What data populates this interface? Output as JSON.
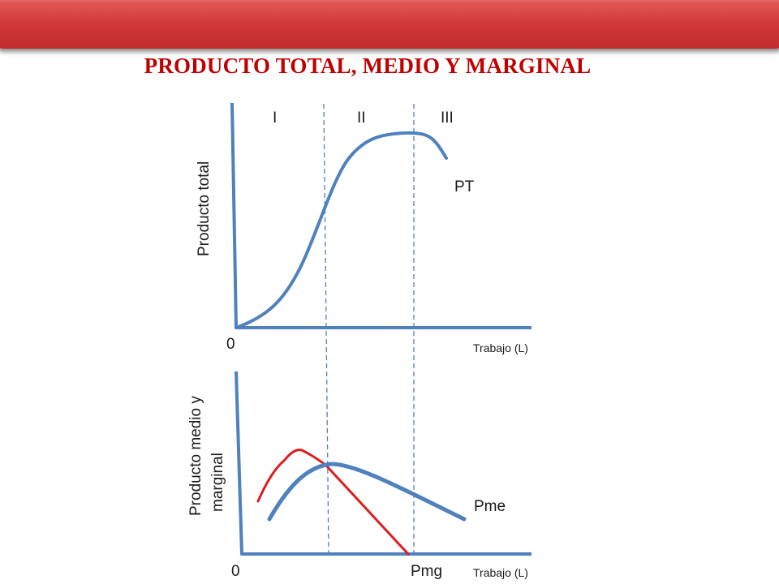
{
  "title": "PRODUCTO TOTAL, MEDIO Y MARGINAL",
  "top_graph": {
    "ylabel": "Producto total",
    "xlabel": "Trabajo (L)",
    "origin": "0",
    "stages": [
      "I",
      "II",
      "III"
    ],
    "curve_label": "PT",
    "curve_color": "#4f81bd"
  },
  "bottom_graph": {
    "ylabel_line1": "Producto medio y",
    "ylabel_line2": "marginal",
    "xlabel": "Trabajo (L)",
    "origin": "0",
    "pme_label": "Pme",
    "pmg_label": "Pmg",
    "pme_color": "#4f81bd",
    "pmg_color": "#e01b1b"
  },
  "axis_color": "#4f81bd",
  "guide_color": "#4f81bd"
}
